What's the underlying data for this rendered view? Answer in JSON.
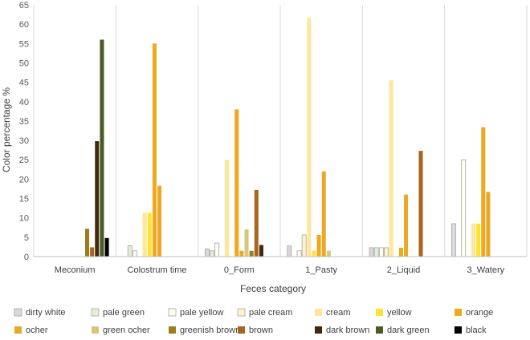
{
  "chart_data": {
    "type": "bar",
    "xlabel": "Feces category",
    "ylabel": "Color percentage %",
    "ylim": [
      0,
      65
    ],
    "yticks": [
      0,
      5,
      10,
      15,
      20,
      25,
      30,
      35,
      40,
      45,
      50,
      55,
      60,
      65
    ],
    "grid": "vertical separators between categories",
    "legend_position": "bottom",
    "categories": [
      "Meconium",
      "Colostrum time",
      "0_Form",
      "1_Pasty",
      "2_Liquid",
      "3_Watery"
    ],
    "series": [
      {
        "name": "dirty white",
        "color": "#D9D9D9",
        "values": [
          0,
          0,
          2.0,
          2.8,
          2.3,
          8.5
        ]
      },
      {
        "name": "pale green",
        "color": "#E2EFDA",
        "values": [
          0,
          2.8,
          1.5,
          0,
          2.3,
          0
        ]
      },
      {
        "name": "pale yellow",
        "color": "#FFFFF0",
        "values": [
          0,
          1.5,
          3.5,
          1.5,
          2.3,
          25.0
        ]
      },
      {
        "name": "pale cream",
        "color": "#FFF2CC",
        "values": [
          0,
          0,
          0,
          5.6,
          2.3,
          0
        ]
      },
      {
        "name": "cream",
        "color": "#FFE699",
        "values": [
          0,
          11.3,
          25.0,
          61.6,
          45.5,
          8.5
        ]
      },
      {
        "name": "yellow",
        "color": "#FFE333",
        "values": [
          0,
          11.3,
          0,
          1.5,
          0,
          8.5
        ]
      },
      {
        "name": "orange",
        "color": "#F0A81C",
        "values": [
          0,
          55.0,
          38.0,
          5.6,
          2.3,
          33.4
        ]
      },
      {
        "name": "ocher",
        "color": "#E9A828",
        "values": [
          0,
          18.3,
          1.5,
          22.0,
          16.0,
          16.7
        ]
      },
      {
        "name": "green ocher",
        "color": "#D6C67A",
        "values": [
          0,
          0,
          7.0,
          1.5,
          0,
          0
        ]
      },
      {
        "name": "greenish brown",
        "color": "#9C7D1D",
        "values": [
          7.2,
          0,
          1.5,
          0,
          0,
          0
        ]
      },
      {
        "name": "brown",
        "color": "#A8651B",
        "values": [
          2.4,
          0,
          17.2,
          0,
          27.3,
          0
        ]
      },
      {
        "name": "dark brown",
        "color": "#3F2A0B",
        "values": [
          29.8,
          0,
          3.0,
          0,
          0,
          0
        ]
      },
      {
        "name": "dark green",
        "color": "#4A5B26",
        "values": [
          56.0,
          0,
          0,
          0,
          0,
          0
        ]
      },
      {
        "name": "black",
        "color": "#000000",
        "values": [
          4.8,
          0,
          0,
          0,
          0,
          0
        ]
      }
    ]
  }
}
